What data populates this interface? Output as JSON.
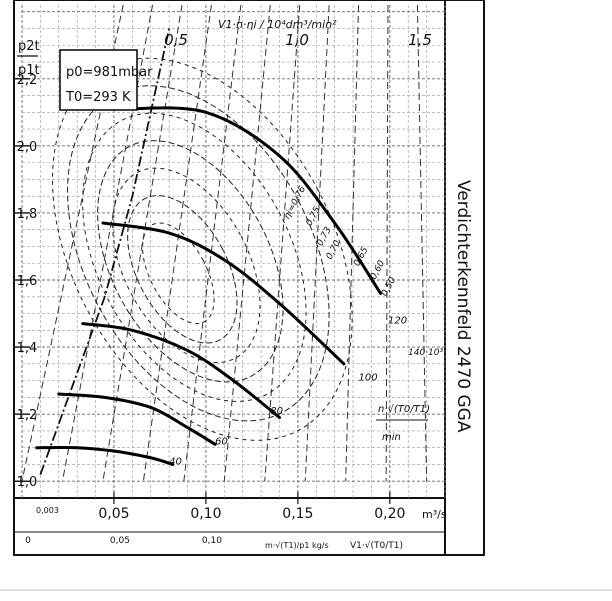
{
  "chart_data": {
    "type": "line",
    "title": "Verdichterkennfeld 2470 GGA",
    "ylabel_num": "p2t",
    "ylabel_den": "p1t",
    "xlabel_volume": "V1·√(T0/T1)",
    "xlabel_volume_unit": "m³/s",
    "xlabel_mass": "m·√(T1)/p1 kg/s",
    "xlabel_mass_unit": "kg/s",
    "conditions": [
      "p0=981mbar",
      "T0=293 K"
    ],
    "speed_label": "n·√(T0/T1)",
    "speed_unit": "min",
    "speed_exp_label": "140·10³",
    "flow_param_label": "V1·n·ηi / 10⁴dm³/min²",
    "xlim": [
      0,
      0.23
    ],
    "ylim": [
      0.95,
      2.42
    ],
    "y_ticks": [
      {
        "v": 1.0,
        "t": "1,0"
      },
      {
        "v": 1.2,
        "t": "1,2"
      },
      {
        "v": 1.4,
        "t": "1,4"
      },
      {
        "v": 1.6,
        "t": "1,6"
      },
      {
        "v": 1.8,
        "t": "1,8"
      },
      {
        "v": 2.0,
        "t": "2,0"
      },
      {
        "v": 2.2,
        "t": "2,2"
      }
    ],
    "x_ticks": [
      {
        "v": 0.05,
        "t": "0,05"
      },
      {
        "v": 0.1,
        "t": "0,10"
      },
      {
        "v": 0.15,
        "t": "0,15"
      },
      {
        "v": 0.2,
        "t": "0,20"
      }
    ],
    "x_origin_label": "0,003",
    "mass_ticks": [
      {
        "v": 0,
        "t": "0"
      },
      {
        "v": 0.05,
        "t": "0,05"
      },
      {
        "v": 0.1,
        "t": "0,10"
      }
    ],
    "flow_param_ticks": [
      {
        "v": 0.5,
        "t": "0,5"
      },
      {
        "v": 1.0,
        "t": "1,0"
      },
      {
        "v": 1.5,
        "t": "1,5"
      }
    ],
    "speed_lines": [
      {
        "name": "40",
        "x": [
          0.008,
          0.03,
          0.05,
          0.07,
          0.082
        ],
        "y": [
          1.1,
          1.1,
          1.09,
          1.07,
          1.05
        ]
      },
      {
        "name": "60",
        "x": [
          0.02,
          0.045,
          0.07,
          0.09,
          0.105
        ],
        "y": [
          1.26,
          1.25,
          1.22,
          1.16,
          1.11
        ]
      },
      {
        "name": "80",
        "x": [
          0.033,
          0.06,
          0.09,
          0.115,
          0.14
        ],
        "y": [
          1.47,
          1.45,
          1.39,
          1.3,
          1.19
        ]
      },
      {
        "name": "100",
        "x": [
          0.044,
          0.08,
          0.11,
          0.14,
          0.175
        ],
        "y": [
          1.77,
          1.74,
          1.66,
          1.53,
          1.35
        ]
      },
      {
        "name": "120",
        "x": [
          0.055,
          0.1,
          0.14,
          0.17,
          0.195
        ],
        "y": [
          2.11,
          2.1,
          1.97,
          1.77,
          1.56
        ]
      }
    ],
    "speed_labels": [
      {
        "t": "40",
        "x": 0.08,
        "y": 1.05
      },
      {
        "t": "60",
        "x": 0.105,
        "y": 1.11
      },
      {
        "t": "80",
        "x": 0.135,
        "y": 1.2
      },
      {
        "t": "100",
        "x": 0.183,
        "y": 1.3
      },
      {
        "t": "120",
        "x": 0.199,
        "y": 1.47
      }
    ],
    "efficiency_labels": [
      {
        "t": "ηi=0,76",
        "x": 0.145,
        "y": 1.78
      },
      {
        "t": "0,75",
        "x": 0.157,
        "y": 1.76
      },
      {
        "t": "0,73",
        "x": 0.163,
        "y": 1.7
      },
      {
        "t": "0,70",
        "x": 0.168,
        "y": 1.66
      },
      {
        "t": "0,65",
        "x": 0.183,
        "y": 1.64
      },
      {
        "t": "0,60",
        "x": 0.192,
        "y": 1.6
      },
      {
        "t": "0,50",
        "x": 0.198,
        "y": 1.55
      }
    ],
    "surge_line": {
      "x": [
        0.01,
        0.045,
        0.06,
        0.08
      ],
      "y": [
        1.02,
        1.55,
        1.85,
        2.35
      ]
    },
    "grid": true
  }
}
